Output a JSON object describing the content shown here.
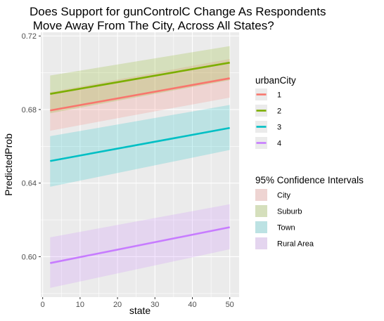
{
  "chart_data": {
    "type": "line",
    "title_lines": [
      "Does Support for gunControlC Change As Respondents",
      " Move Away From The City, Across All States?"
    ],
    "xlabel": "state",
    "ylabel": "PredictedProb",
    "xlim": [
      -0.5,
      52.5
    ],
    "ylim": [
      0.578,
      0.722
    ],
    "x_ticks": [
      0,
      10,
      20,
      30,
      40,
      50
    ],
    "y_ticks": [
      0.6,
      0.64,
      0.68,
      0.72
    ],
    "y_tick_labels": [
      "0.60",
      "0.64",
      "0.68",
      "0.72"
    ],
    "x_range": [
      2,
      50
    ],
    "grid": true,
    "panel_background": "#ebebeb",
    "legend_position": "right",
    "series": [
      {
        "name": "1",
        "color": "#F8766D",
        "fill": "#F8766D",
        "ribbon_label": "City",
        "y": [
          0.6795,
          0.697
        ],
        "lower": [
          0.6685,
          0.6865
        ],
        "upper": [
          0.6895,
          0.7075
        ]
      },
      {
        "name": "2",
        "color": "#7CAE00",
        "fill": "#7CAE00",
        "ribbon_label": "Suburb",
        "y": [
          0.6885,
          0.7055
        ],
        "lower": [
          0.678,
          0.696
        ],
        "upper": [
          0.6985,
          0.7145
        ]
      },
      {
        "name": "3",
        "color": "#00BFC4",
        "fill": "#00BFC4",
        "ribbon_label": "Town",
        "y": [
          0.652,
          0.67
        ],
        "lower": [
          0.638,
          0.658
        ],
        "upper": [
          0.6655,
          0.6825
        ]
      },
      {
        "name": "4",
        "color": "#C77CFF",
        "fill": "#C77CFF",
        "ribbon_label": "Rural Area",
        "y": [
          0.5965,
          0.616
        ],
        "lower": [
          0.583,
          0.604
        ],
        "upper": [
          0.6105,
          0.6285
        ]
      }
    ],
    "legend_lines_title": "urbanCity",
    "legend_ribbons_title": "95% Confidence Intervals"
  }
}
